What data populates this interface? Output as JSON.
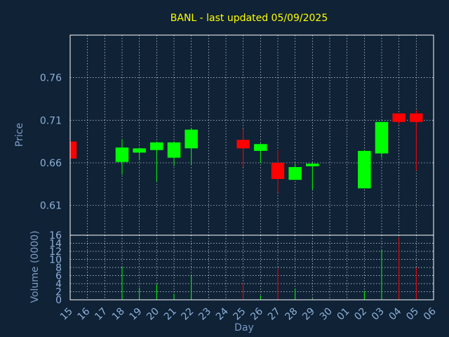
{
  "chart_data": {
    "type": "candlestick",
    "title": "BANL - last updated 05/09/2025",
    "xlabel": "Day",
    "price_axis": {
      "label": "Price",
      "ylim": [
        0.575,
        0.81
      ],
      "ticks": [
        "0.76",
        "0.71",
        "0.66",
        "0.61"
      ]
    },
    "volume_axis": {
      "label": "Volume (0000)",
      "ylim": [
        0,
        16
      ],
      "ticks": [
        "16",
        "14",
        "12",
        "10",
        "8",
        "6",
        "4",
        "2",
        "0"
      ]
    },
    "x_ticks": [
      "15",
      "16",
      "17",
      "18",
      "19",
      "20",
      "21",
      "22",
      "23",
      "24",
      "25",
      "26",
      "27",
      "28",
      "29",
      "30",
      "01",
      "02",
      "03",
      "04",
      "05",
      "06"
    ],
    "colors": {
      "up": "#00ff00",
      "down": "#ff0000",
      "background": "#0f2236",
      "title": "#ffff00",
      "axis_text": "#8fb0d8"
    },
    "candles": [
      {
        "day": "15",
        "open": 0.685,
        "high": 0.685,
        "low": 0.665,
        "close": 0.665
      },
      {
        "day": "18",
        "open": 0.661,
        "high": 0.688,
        "low": 0.646,
        "close": 0.678
      },
      {
        "day": "19",
        "open": 0.672,
        "high": 0.678,
        "low": 0.663,
        "close": 0.677
      },
      {
        "day": "20",
        "open": 0.675,
        "high": 0.685,
        "low": 0.638,
        "close": 0.684
      },
      {
        "day": "21",
        "open": 0.666,
        "high": 0.685,
        "low": 0.656,
        "close": 0.684
      },
      {
        "day": "22",
        "open": 0.677,
        "high": 0.701,
        "low": 0.658,
        "close": 0.699
      },
      {
        "day": "25",
        "open": 0.687,
        "high": 0.7,
        "low": 0.655,
        "close": 0.677
      },
      {
        "day": "26",
        "open": 0.674,
        "high": 0.683,
        "low": 0.66,
        "close": 0.682
      },
      {
        "day": "27",
        "open": 0.66,
        "high": 0.675,
        "low": 0.625,
        "close": 0.641
      },
      {
        "day": "28",
        "open": 0.64,
        "high": 0.659,
        "low": 0.64,
        "close": 0.655
      },
      {
        "day": "29",
        "open": 0.656,
        "high": 0.66,
        "low": 0.628,
        "close": 0.659
      },
      {
        "day": "02",
        "open": 0.63,
        "high": 0.675,
        "low": 0.63,
        "close": 0.674
      },
      {
        "day": "03",
        "open": 0.671,
        "high": 0.708,
        "low": 0.666,
        "close": 0.708
      },
      {
        "day": "04",
        "open": 0.718,
        "high": 0.718,
        "low": 0.705,
        "close": 0.708
      },
      {
        "day": "05",
        "open": 0.718,
        "high": 0.722,
        "low": 0.651,
        "close": 0.708
      }
    ],
    "volume": [
      {
        "day": "15",
        "value": 0
      },
      {
        "day": "18",
        "value": 8.2,
        "direction": "up"
      },
      {
        "day": "19",
        "value": 3.0,
        "direction": "up"
      },
      {
        "day": "20",
        "value": 3.8,
        "direction": "up"
      },
      {
        "day": "21",
        "value": 1.5,
        "direction": "up"
      },
      {
        "day": "22",
        "value": 6.0,
        "direction": "up"
      },
      {
        "day": "25",
        "value": 4.2,
        "direction": "down"
      },
      {
        "day": "26",
        "value": 1.0,
        "direction": "up"
      },
      {
        "day": "27",
        "value": 7.8,
        "direction": "down"
      },
      {
        "day": "28",
        "value": 2.8,
        "direction": "up"
      },
      {
        "day": "29",
        "value": 0.3,
        "direction": "up"
      },
      {
        "day": "02",
        "value": 2.2,
        "direction": "up"
      },
      {
        "day": "03",
        "value": 12.4,
        "direction": "up"
      },
      {
        "day": "04",
        "value": 15.5,
        "direction": "down"
      },
      {
        "day": "05",
        "value": 8.0,
        "direction": "down"
      }
    ]
  }
}
